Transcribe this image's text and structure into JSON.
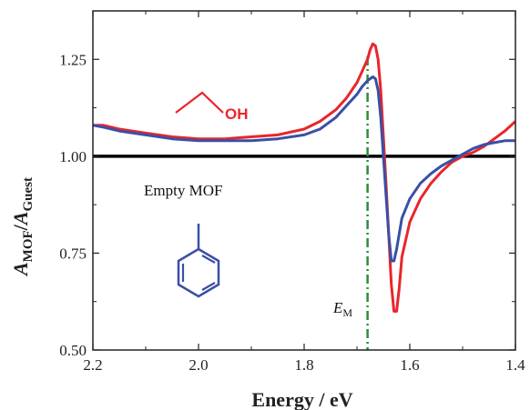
{
  "chart_data": {
    "type": "line",
    "title": "",
    "xlabel": "Energy / eV",
    "ylabel": "A_MOF/A_Guest",
    "ylabel_parts": {
      "a1": "A",
      "s1": "MOF",
      "slash": "/",
      "a2": "A",
      "s2": "Guest"
    },
    "xlim": [
      2.2,
      1.4
    ],
    "ylim": [
      0.5,
      1.375
    ],
    "x_reversed": true,
    "xticks": [
      2.2,
      2.0,
      1.8,
      1.6,
      1.4
    ],
    "xtick_labels": [
      "2.2",
      "2.0",
      "1.8",
      "1.6",
      "1.4"
    ],
    "yticks": [
      0.5,
      0.75,
      1.0,
      1.25
    ],
    "ytick_labels": [
      "0.50",
      "0.75",
      "1.00",
      "1.25"
    ],
    "grid": false,
    "series": [
      {
        "color": "#e8262b",
        "x": [
          2.2,
          2.18,
          2.15,
          2.1,
          2.05,
          2.0,
          1.95,
          1.9,
          1.85,
          1.8,
          1.77,
          1.74,
          1.72,
          1.7,
          1.69,
          1.68,
          1.675,
          1.67,
          1.665,
          1.66,
          1.655,
          1.65,
          1.645,
          1.64,
          1.635,
          1.63,
          1.625,
          1.62,
          1.615,
          1.6,
          1.58,
          1.56,
          1.54,
          1.52,
          1.5,
          1.48,
          1.46,
          1.44,
          1.42,
          1.4
        ],
        "y": [
          1.08,
          1.08,
          1.07,
          1.06,
          1.05,
          1.045,
          1.045,
          1.05,
          1.055,
          1.07,
          1.09,
          1.12,
          1.15,
          1.19,
          1.22,
          1.25,
          1.275,
          1.29,
          1.285,
          1.25,
          1.17,
          1.05,
          0.93,
          0.8,
          0.67,
          0.6,
          0.6,
          0.66,
          0.74,
          0.83,
          0.89,
          0.93,
          0.96,
          0.985,
          1.0,
          1.01,
          1.025,
          1.045,
          1.065,
          1.09
        ]
      },
      {
        "color": "#3a4fa6",
        "x": [
          2.2,
          2.18,
          2.15,
          2.1,
          2.05,
          2.0,
          1.95,
          1.9,
          1.85,
          1.8,
          1.77,
          1.74,
          1.72,
          1.7,
          1.69,
          1.68,
          1.675,
          1.67,
          1.665,
          1.66,
          1.655,
          1.65,
          1.645,
          1.64,
          1.635,
          1.63,
          1.625,
          1.62,
          1.615,
          1.6,
          1.58,
          1.56,
          1.54,
          1.52,
          1.5,
          1.48,
          1.46,
          1.44,
          1.42,
          1.4
        ],
        "y": [
          1.08,
          1.075,
          1.065,
          1.055,
          1.045,
          1.04,
          1.04,
          1.04,
          1.045,
          1.055,
          1.07,
          1.1,
          1.13,
          1.16,
          1.18,
          1.195,
          1.2,
          1.205,
          1.2,
          1.17,
          1.1,
          1.0,
          0.9,
          0.8,
          0.73,
          0.73,
          0.76,
          0.8,
          0.84,
          0.89,
          0.93,
          0.955,
          0.975,
          0.99,
          1.005,
          1.02,
          1.03,
          1.035,
          1.04,
          1.04
        ]
      }
    ],
    "reference_line": {
      "y": 1.0,
      "color": "#000000"
    },
    "marker_line": {
      "x": 1.68,
      "color": "#2e8b3a",
      "label_main": "E",
      "label_sub": "M"
    },
    "annotations": {
      "empty_mof": "Empty MOF",
      "oh": "OH"
    }
  }
}
